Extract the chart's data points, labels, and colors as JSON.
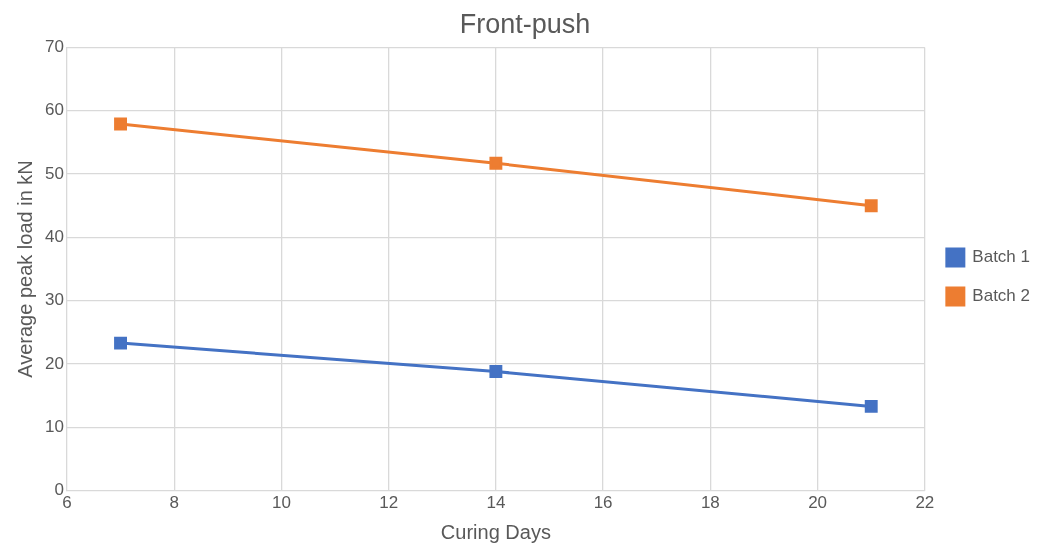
{
  "chart_data": {
    "type": "line",
    "title": "Front-push",
    "xlabel": "Curing Days",
    "ylabel": "Average peak load in kN",
    "x": [
      7,
      14,
      21
    ],
    "series": [
      {
        "name": "Batch 1",
        "color": "#4472c4",
        "values": [
          23.3,
          18.8,
          13.3
        ]
      },
      {
        "name": "Batch 2",
        "color": "#ed7d31",
        "values": [
          57.9,
          51.7,
          45.0
        ]
      }
    ],
    "xlim": [
      6,
      22
    ],
    "xticks": [
      6,
      8,
      10,
      12,
      14,
      16,
      18,
      20,
      22
    ],
    "ylim": [
      0,
      70
    ],
    "yticks": [
      0,
      10,
      20,
      30,
      40,
      50,
      60,
      70
    ],
    "grid": true,
    "legend": "right",
    "marker": "square",
    "line_style": "solid"
  }
}
